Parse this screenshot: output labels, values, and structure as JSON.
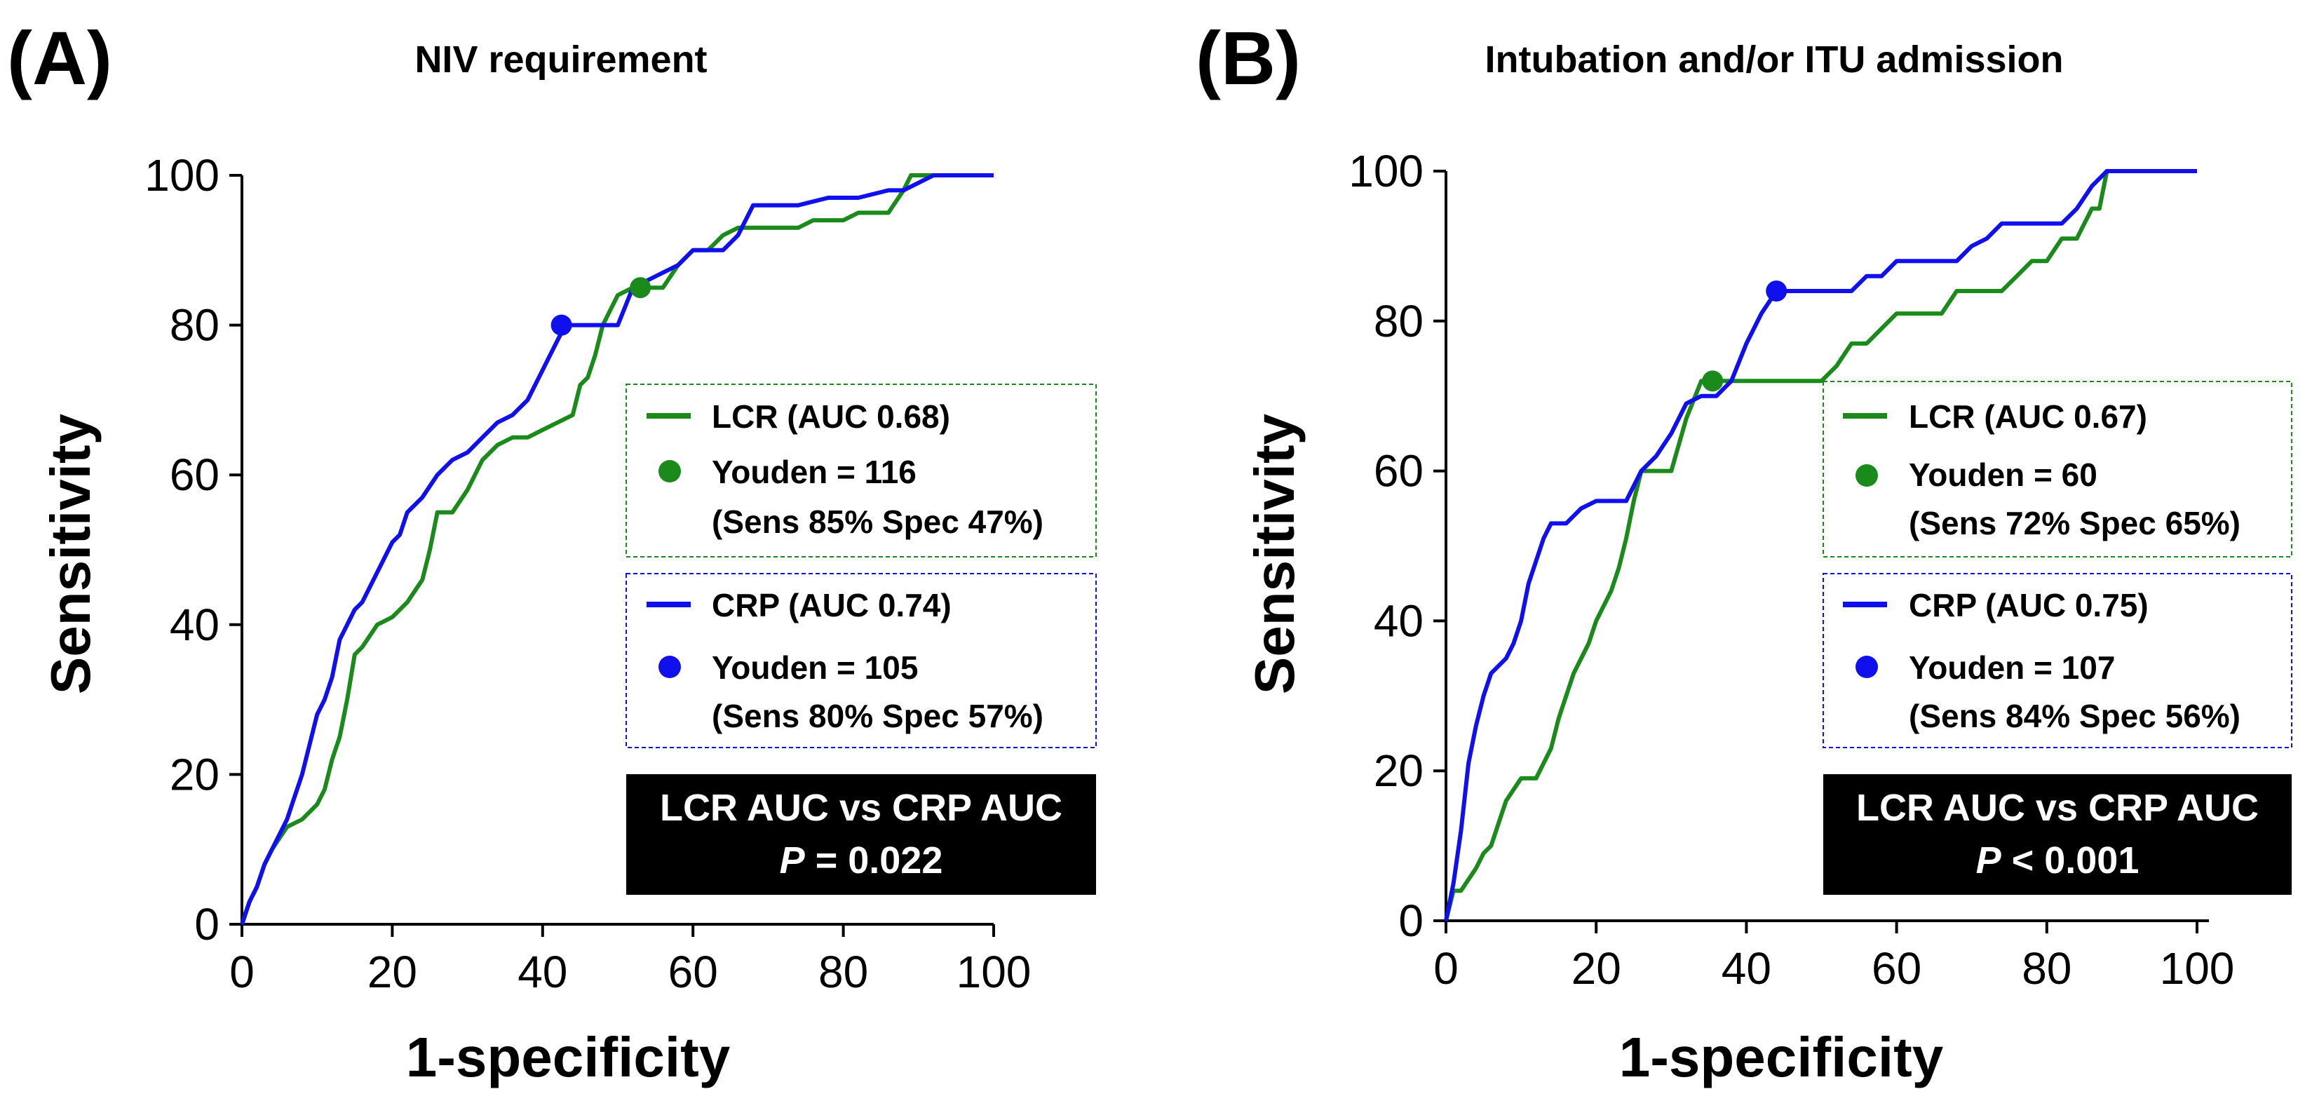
{
  "colors": {
    "lcr": "#1a8a1a",
    "crp": "#1010ee",
    "axis": "#000000",
    "box_bg": "#000000",
    "box_text": "#ffffff"
  },
  "chart_data": [
    {
      "type": "line",
      "panel_label": "(A)",
      "title": "NIV requirement",
      "xlabel": "1-specificity",
      "ylabel": "Sensitivity",
      "xlim": [
        0,
        100
      ],
      "ylim": [
        0,
        100
      ],
      "ticks": [
        "0",
        "20",
        "40",
        "60",
        "80",
        "100"
      ],
      "series": [
        {
          "name": "LCR (AUC 0.68)",
          "x": [
            0,
            1,
            2,
            3,
            4,
            6,
            8,
            10,
            11,
            12,
            13,
            14,
            15,
            16,
            18,
            20,
            22,
            24,
            25,
            26,
            27,
            28,
            30,
            32,
            33,
            34,
            36,
            38,
            40,
            42,
            44,
            45,
            46,
            47,
            48,
            49,
            50,
            52,
            54,
            56,
            58,
            60,
            62,
            64,
            66,
            68,
            70,
            72,
            74,
            76,
            78,
            80,
            82,
            84,
            86,
            88,
            89,
            92,
            96,
            100
          ],
          "y": [
            0,
            3,
            5,
            8,
            10,
            13,
            14,
            16,
            18,
            22,
            25,
            30,
            36,
            37,
            40,
            41,
            43,
            46,
            50,
            55,
            55,
            55,
            58,
            62,
            63,
            64,
            65,
            65,
            66,
            67,
            68,
            72,
            73,
            76,
            80,
            82,
            84,
            85,
            85,
            85,
            88,
            90,
            90,
            92,
            93,
            93,
            93,
            93,
            93,
            94,
            94,
            94,
            95,
            95,
            95,
            98,
            100,
            100,
            100,
            100
          ]
        },
        {
          "name": "CRP (AUC 0.74)",
          "x": [
            0,
            1,
            2,
            3,
            4,
            5,
            6,
            7,
            8,
            9,
            10,
            11,
            12,
            13,
            14,
            15,
            16,
            18,
            20,
            21,
            22,
            24,
            26,
            28,
            30,
            32,
            34,
            36,
            38,
            40,
            41,
            42,
            43,
            44,
            46,
            48,
            50,
            52,
            54,
            56,
            58,
            60,
            62,
            64,
            66,
            68,
            70,
            74,
            78,
            82,
            86,
            88,
            92,
            96,
            100
          ],
          "y": [
            0,
            3,
            5,
            8,
            10,
            12,
            14,
            17,
            20,
            24,
            28,
            30,
            33,
            38,
            40,
            42,
            43,
            47,
            51,
            52,
            55,
            57,
            60,
            62,
            63,
            65,
            67,
            68,
            70,
            74,
            76,
            78,
            80,
            80,
            80,
            80,
            80,
            85,
            86,
            87,
            88,
            90,
            90,
            90,
            92,
            96,
            96,
            96,
            97,
            97,
            98,
            98,
            100,
            100,
            100
          ]
        }
      ],
      "youden_points": [
        {
          "series": "LCR",
          "x": 53,
          "y": 85
        },
        {
          "series": "CRP",
          "x": 42.5,
          "y": 80
        }
      ],
      "legend_lcr": {
        "line": "LCR (AUC 0.68)",
        "youden": "Youden = 116",
        "sens_spec": "(Sens 85% Spec 47%)"
      },
      "legend_crp": {
        "line": "CRP (AUC 0.74)",
        "youden": "Youden = 105",
        "sens_spec": "(Sens 80% Spec 57%)"
      },
      "stat_box": {
        "line1": "LCR AUC vs CRP AUC",
        "p_label": "P",
        "p_value": "= 0.022"
      }
    },
    {
      "type": "line",
      "panel_label": "(B)",
      "title": "Intubation and/or ITU admission",
      "xlabel": "1-specificity",
      "ylabel": "Sensitivity",
      "xlim": [
        0,
        100
      ],
      "ylim": [
        0,
        100
      ],
      "ticks": [
        "0",
        "20",
        "40",
        "60",
        "80",
        "100"
      ],
      "series": [
        {
          "name": "LCR (AUC 0.67)",
          "x": [
            0,
            1,
            2,
            4,
            5,
            6,
            7,
            8,
            10,
            12,
            14,
            15,
            16,
            17,
            18,
            19,
            20,
            21,
            22,
            23,
            24,
            25,
            26,
            28,
            30,
            32,
            34,
            36,
            38,
            40,
            42,
            44,
            46,
            48,
            50,
            52,
            54,
            56,
            58,
            60,
            62,
            64,
            66,
            68,
            70,
            72,
            74,
            76,
            78,
            80,
            82,
            84,
            85,
            86,
            87,
            88,
            90,
            94,
            100
          ],
          "y": [
            0,
            4,
            4,
            7,
            9,
            10,
            13,
            16,
            19,
            19,
            23,
            27,
            30,
            33,
            35,
            37,
            40,
            42,
            44,
            47,
            51,
            56,
            60,
            60,
            60,
            67,
            72,
            72,
            72,
            72,
            72,
            72,
            72,
            72,
            72,
            74,
            77,
            77,
            79,
            81,
            81,
            81,
            81,
            84,
            84,
            84,
            84,
            86,
            88,
            88,
            91,
            91,
            93,
            95,
            95,
            100,
            100,
            100,
            100
          ]
        },
        {
          "name": "CRP (AUC 0.75)",
          "x": [
            0,
            1,
            2,
            3,
            4,
            5,
            6,
            7,
            8,
            9,
            10,
            11,
            12,
            13,
            14,
            15,
            16,
            18,
            20,
            22,
            24,
            26,
            28,
            30,
            32,
            34,
            36,
            38,
            40,
            42,
            44,
            46,
            48,
            50,
            52,
            54,
            56,
            58,
            60,
            62,
            64,
            66,
            68,
            70,
            72,
            74,
            76,
            78,
            80,
            82,
            84,
            86,
            88,
            90,
            94,
            100
          ],
          "y": [
            0,
            5,
            12,
            21,
            26,
            30,
            33,
            34,
            35,
            37,
            40,
            45,
            48,
            51,
            53,
            53,
            53,
            55,
            56,
            56,
            56,
            60,
            62,
            65,
            69,
            70,
            70,
            72,
            77,
            81,
            84,
            84,
            84,
            84,
            84,
            84,
            86,
            86,
            88,
            88,
            88,
            88,
            88,
            90,
            91,
            93,
            93,
            93,
            93,
            93,
            95,
            98,
            100,
            100,
            100,
            100
          ]
        }
      ],
      "youden_points": [
        {
          "series": "LCR",
          "x": 35.5,
          "y": 72
        },
        {
          "series": "CRP",
          "x": 44,
          "y": 84
        }
      ],
      "legend_lcr": {
        "line": "LCR (AUC 0.67)",
        "youden": "Youden = 60",
        "sens_spec": "(Sens 72% Spec 65%)"
      },
      "legend_crp": {
        "line": "CRP (AUC 0.75)",
        "youden": "Youden = 107",
        "sens_spec": "(Sens 84% Spec 56%)"
      },
      "stat_box": {
        "line1": "LCR AUC vs CRP AUC",
        "p_label": "P",
        "p_value": "< 0.001"
      }
    }
  ]
}
